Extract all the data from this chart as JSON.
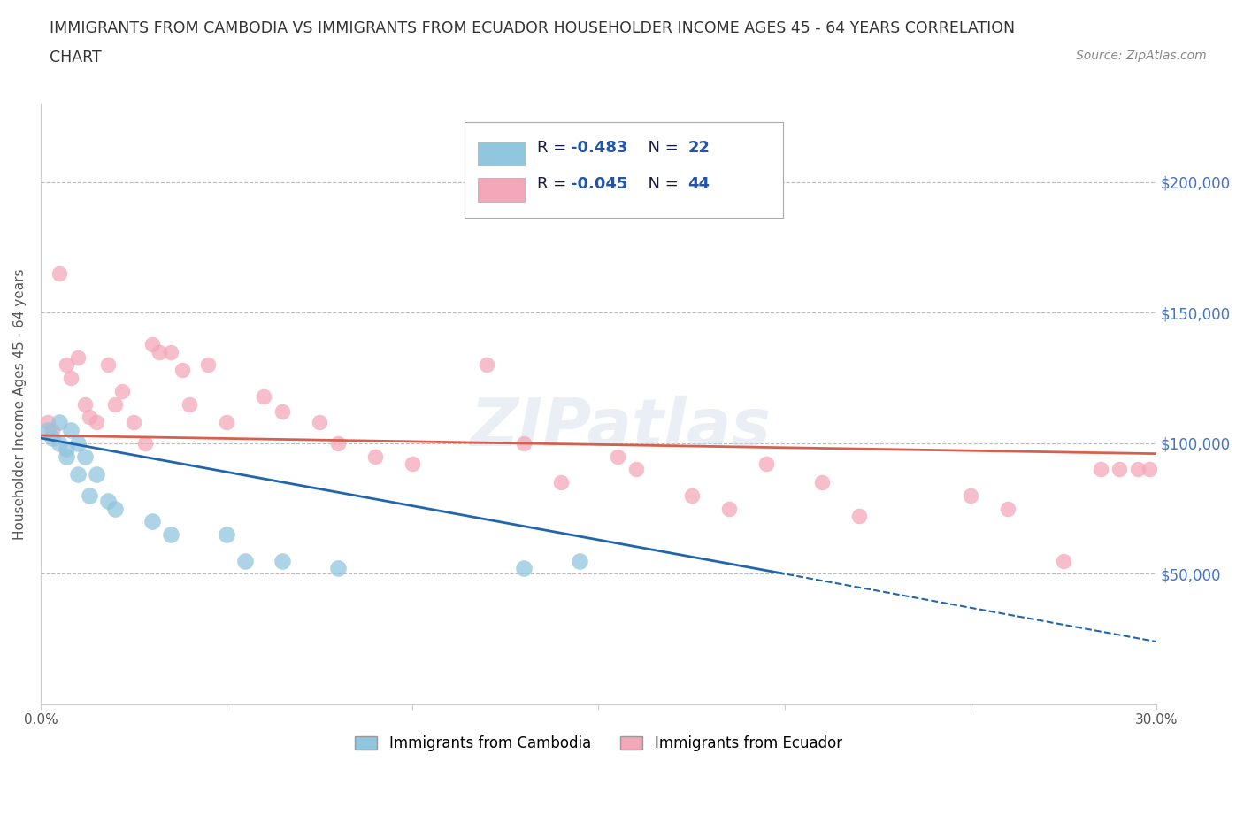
{
  "title_line1": "IMMIGRANTS FROM CAMBODIA VS IMMIGRANTS FROM ECUADOR HOUSEHOLDER INCOME AGES 45 - 64 YEARS CORRELATION",
  "title_line2": "CHART",
  "source_text": "Source: ZipAtlas.com",
  "ylabel": "Householder Income Ages 45 - 64 years",
  "watermark": "ZIPatlas",
  "legend_label1": "Immigrants from Cambodia",
  "legend_label2": "Immigrants from Ecuador",
  "legend_r1": "R = -0.483",
  "legend_n1": "N = 22",
  "legend_r2": "R = -0.045",
  "legend_n2": "N = 44",
  "color_cambodia": "#92C5DE",
  "color_ecuador": "#F4A7B9",
  "color_trendline_cambodia": "#2166AC",
  "color_trendline_ecuador": "#D6604D",
  "color_grid": "#BBBBBB",
  "color_title": "#555555",
  "color_right_axis": "#4472C4",
  "xlim": [
    0.0,
    0.3
  ],
  "ylim": [
    0,
    230000
  ],
  "yticks": [
    50000,
    100000,
    150000,
    200000
  ],
  "ytick_labels": [
    "$50,000",
    "$100,000",
    "$150,000",
    "$200,000"
  ],
  "xticks": [
    0.0,
    0.05,
    0.1,
    0.15,
    0.2,
    0.25,
    0.3
  ],
  "xtick_labels": [
    "0.0%",
    "",
    "",
    "",
    "",
    "",
    "30.0%"
  ],
  "cambodia_x": [
    0.002,
    0.003,
    0.005,
    0.005,
    0.007,
    0.007,
    0.008,
    0.01,
    0.01,
    0.012,
    0.013,
    0.015,
    0.018,
    0.02,
    0.03,
    0.035,
    0.05,
    0.055,
    0.065,
    0.08,
    0.13,
    0.145
  ],
  "cambodia_y": [
    105000,
    102000,
    108000,
    100000,
    98000,
    95000,
    105000,
    100000,
    88000,
    95000,
    80000,
    88000,
    78000,
    75000,
    70000,
    65000,
    65000,
    55000,
    55000,
    52000,
    52000,
    55000
  ],
  "ecuador_x": [
    0.002,
    0.003,
    0.005,
    0.007,
    0.008,
    0.01,
    0.012,
    0.013,
    0.015,
    0.018,
    0.02,
    0.022,
    0.025,
    0.028,
    0.03,
    0.032,
    0.035,
    0.038,
    0.04,
    0.045,
    0.05,
    0.06,
    0.065,
    0.075,
    0.08,
    0.09,
    0.1,
    0.12,
    0.13,
    0.14,
    0.155,
    0.16,
    0.175,
    0.185,
    0.195,
    0.21,
    0.22,
    0.25,
    0.26,
    0.275,
    0.285,
    0.29,
    0.295,
    0.298
  ],
  "ecuador_y": [
    108000,
    105000,
    165000,
    130000,
    125000,
    133000,
    115000,
    110000,
    108000,
    130000,
    115000,
    120000,
    108000,
    100000,
    138000,
    135000,
    135000,
    128000,
    115000,
    130000,
    108000,
    118000,
    112000,
    108000,
    100000,
    95000,
    92000,
    130000,
    100000,
    85000,
    95000,
    90000,
    80000,
    75000,
    92000,
    85000,
    72000,
    80000,
    75000,
    55000,
    90000,
    90000,
    90000,
    90000
  ],
  "cam_trend_x0": 0.0,
  "cam_trend_y0": 102000,
  "cam_trend_x1": 0.2,
  "cam_trend_y1": 50000,
  "ecu_trend_y0": 103000,
  "ecu_trend_y1": 96000
}
